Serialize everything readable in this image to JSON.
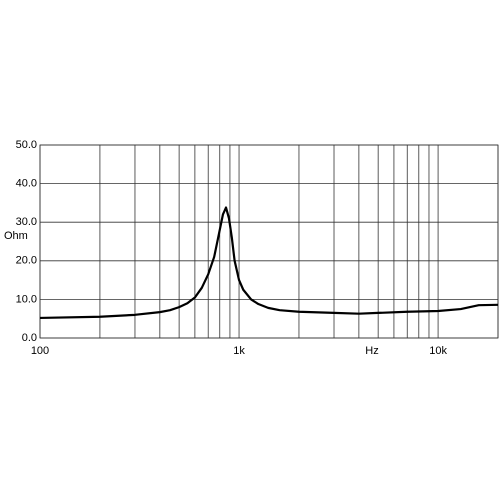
{
  "chart_data": {
    "type": "line",
    "y_label": "Ohm",
    "x_label": "Hz",
    "x": [
      100,
      200,
      300,
      400,
      450,
      500,
      550,
      600,
      650,
      700,
      750,
      800,
      830,
      860,
      890,
      920,
      950,
      1000,
      1050,
      1150,
      1250,
      1400,
      1600,
      2000,
      3000,
      4000,
      5000,
      7000,
      10000,
      13000,
      16000,
      20000
    ],
    "values": [
      5.2,
      5.5,
      6.0,
      6.7,
      7.2,
      8.0,
      9.0,
      10.5,
      13.0,
      16.5,
      21.0,
      28.0,
      32.0,
      33.8,
      31.0,
      26.0,
      20.0,
      15.0,
      12.5,
      10.0,
      8.8,
      7.8,
      7.2,
      6.8,
      6.5,
      6.3,
      6.5,
      6.8,
      7.0,
      7.5,
      8.5,
      8.6
    ],
    "color": "#000000",
    "log_x": true,
    "xlim": [
      100,
      20000
    ],
    "xticks": [
      100,
      {
        "value": 1000,
        "label": "1k"
      },
      {
        "value": 10000,
        "label": "10k"
      }
    ],
    "x_grid": [
      100,
      200,
      300,
      400,
      500,
      600,
      700,
      800,
      900,
      1000,
      2000,
      3000,
      4000,
      5000,
      6000,
      7000,
      8000,
      9000,
      10000,
      20000
    ],
    "ylim": [
      0,
      50
    ],
    "yticks": [
      {
        "value": 0,
        "label": "0.0"
      },
      {
        "value": 10,
        "label": "10.0"
      },
      {
        "value": 20,
        "label": "20.0"
      },
      {
        "value": 30,
        "label": "30.0"
      },
      {
        "value": 40,
        "label": "40.0"
      },
      {
        "value": 50,
        "label": "50.0"
      }
    ],
    "grid": true
  }
}
